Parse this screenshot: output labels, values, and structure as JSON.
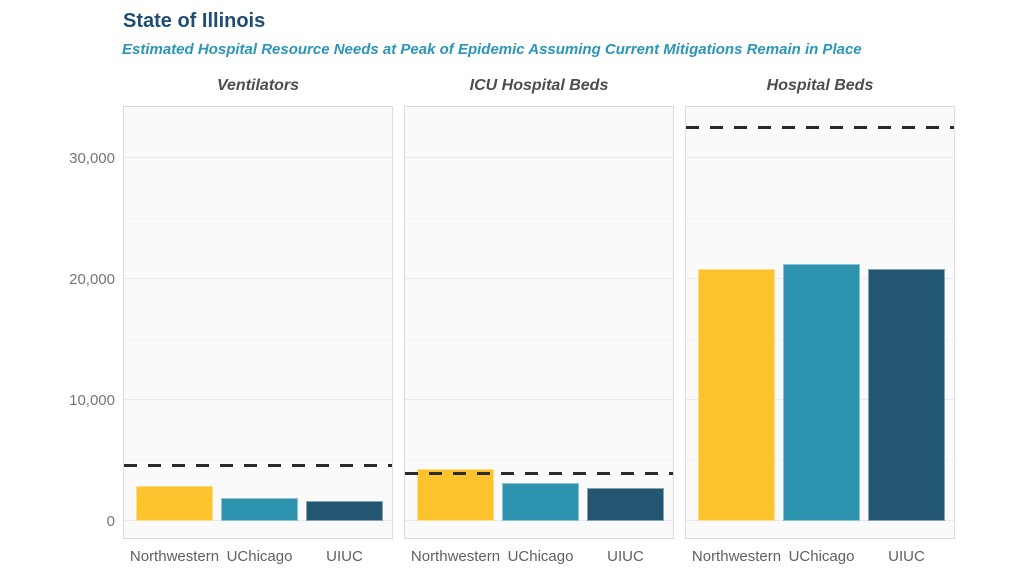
{
  "header": {
    "title": "State of Illinois",
    "subtitle": "Estimated Hospital Resource Needs at Peak of Epidemic Assuming Current Mitigations Remain in Place"
  },
  "colors": {
    "title_text": "#204e72",
    "subtitle_text": "#2a96ba",
    "facet_title_text": "#4d4d4d",
    "axis_text": "#757575",
    "panel_background": "#fafafa",
    "panel_border": "#dcdcdc",
    "capacity_line": "#2b2b2b",
    "series": [
      "#fdc32d",
      "#2e93af",
      "#235671"
    ]
  },
  "chart_data": {
    "type": "bar",
    "title": "State of Illinois",
    "subtitle": "Estimated Hospital Resource Needs at Peak of Epidemic Assuming Current Mitigations Remain in Place",
    "categories": [
      "Northwestern",
      "UChicago",
      "UIUC"
    ],
    "series_colors": [
      "#fdc32d",
      "#2e93af",
      "#235671"
    ],
    "legend": "none",
    "grid": "horizontal",
    "y_axis": {
      "ylim": [
        0,
        34000
      ],
      "ticks": [
        0,
        10000,
        20000,
        30000
      ],
      "tick_labels": [
        "0",
        "10,000",
        "20,000",
        "30,000"
      ],
      "minor_gridlines": [
        5000,
        15000,
        25000
      ]
    },
    "panels": [
      {
        "title": "Ventilators",
        "values": [
          2900,
          1900,
          1650
        ],
        "capacity_dashed_line": 4550
      },
      {
        "title": "ICU Hospital Beds",
        "values": [
          4300,
          3150,
          2750
        ],
        "capacity_dashed_line": 3900
      },
      {
        "title": "Hospital Beds",
        "values": [
          20800,
          21200,
          20800
        ],
        "capacity_dashed_line": 32500
      }
    ]
  }
}
